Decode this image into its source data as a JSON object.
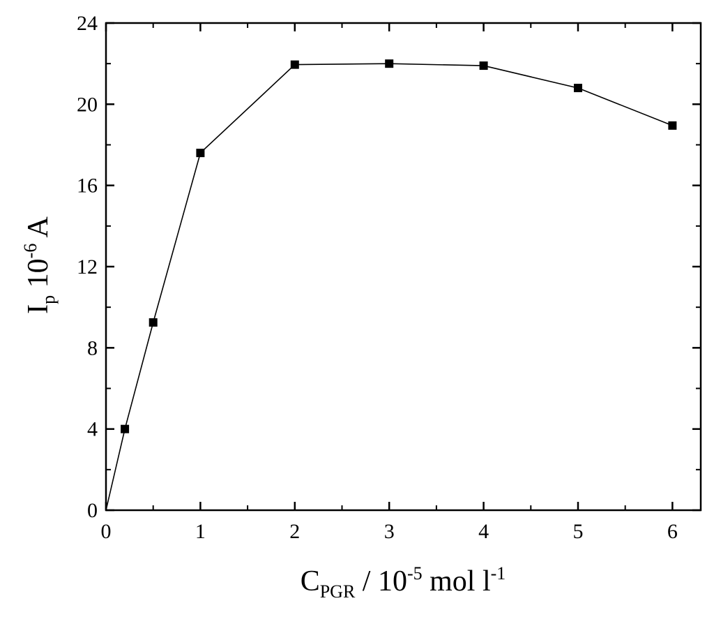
{
  "chart_data": {
    "type": "line",
    "title": "",
    "xlabel": {
      "main": "C",
      "sub": "PGR",
      "rest": " / 10",
      "exp": "-5",
      "unit": " mol l",
      "unit_exp": "-1"
    },
    "ylabel": {
      "main": "I",
      "sub": "p",
      "rest": " 10",
      "exp": "-6",
      "unit": " A"
    },
    "xlim": [
      0,
      6.3
    ],
    "ylim": [
      0,
      24
    ],
    "xticks": [
      "0",
      "1",
      "2",
      "3",
      "4",
      "5",
      "6"
    ],
    "yticks": [
      "0",
      "4",
      "8",
      "12",
      "16",
      "20",
      "24"
    ],
    "grid": false,
    "series": [
      {
        "x": [
          0,
          0.2,
          0.5,
          1,
          2,
          3,
          4,
          5,
          6
        ],
        "y": [
          0,
          4.0,
          9.25,
          17.6,
          21.95,
          22.0,
          21.9,
          20.8,
          18.95
        ],
        "markers": [
          false,
          true,
          true,
          true,
          true,
          true,
          true,
          true,
          true
        ],
        "marker": "filled-square",
        "color": "#000000"
      }
    ]
  }
}
